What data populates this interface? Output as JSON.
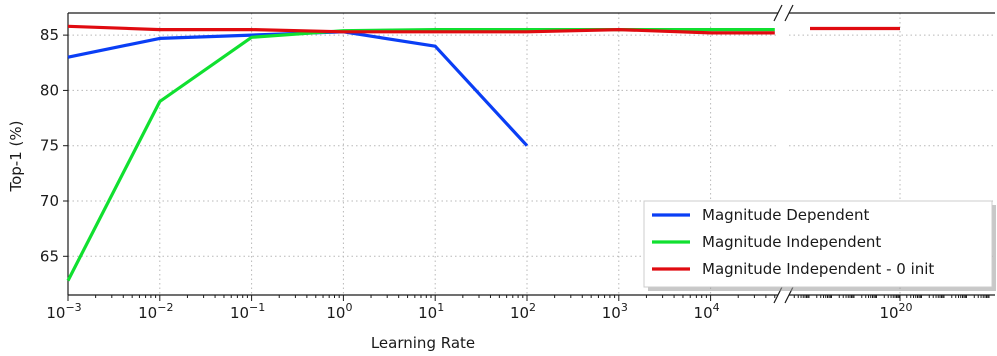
{
  "chart_data": {
    "type": "line",
    "title": "",
    "xlabel": "Learning Rate",
    "ylabel": "Top-1 (%)",
    "x_scale": "log",
    "x_axis_broken": true,
    "x_ticks": [
      {
        "base": "10",
        "exp": "−3"
      },
      {
        "base": "10",
        "exp": "−2"
      },
      {
        "base": "10",
        "exp": "−1"
      },
      {
        "base": "10",
        "exp": "0"
      },
      {
        "base": "10",
        "exp": "1"
      },
      {
        "base": "10",
        "exp": "2"
      },
      {
        "base": "10",
        "exp": "3"
      },
      {
        "base": "10",
        "exp": "4"
      },
      {
        "base": "10",
        "exp": "20"
      }
    ],
    "ylim": [
      61.5,
      87
    ],
    "y_ticks": [
      "65",
      "70",
      "75",
      "80",
      "85"
    ],
    "grid": true,
    "legend_position": "bottom-right",
    "series": [
      {
        "name": "Magnitude Dependent",
        "color": "#0a3ef5",
        "x": [
          0.001,
          0.01,
          0.1,
          1,
          10,
          100
        ],
        "y": [
          83.0,
          84.7,
          85.0,
          85.3,
          84.0,
          75.0
        ]
      },
      {
        "name": "Magnitude Independent",
        "color": "#10e030",
        "x": [
          0.001,
          0.01,
          0.1,
          1,
          10,
          100,
          1000,
          10000,
          50000
        ],
        "y": [
          62.8,
          79.0,
          84.8,
          85.4,
          85.5,
          85.5,
          85.5,
          85.5,
          85.5
        ]
      },
      {
        "name": "Magnitude Independent - 0 init",
        "color": "#e00b10",
        "x": [
          0.001,
          0.01,
          0.1,
          1,
          10,
          100,
          1000,
          10000,
          50000
        ],
        "y": [
          85.8,
          85.5,
          85.5,
          85.3,
          85.3,
          85.3,
          85.5,
          85.2,
          85.2
        ],
        "x_after_break": [
          1e+16,
          1e+20
        ],
        "y_after_break": [
          85.6,
          85.6
        ]
      }
    ]
  }
}
